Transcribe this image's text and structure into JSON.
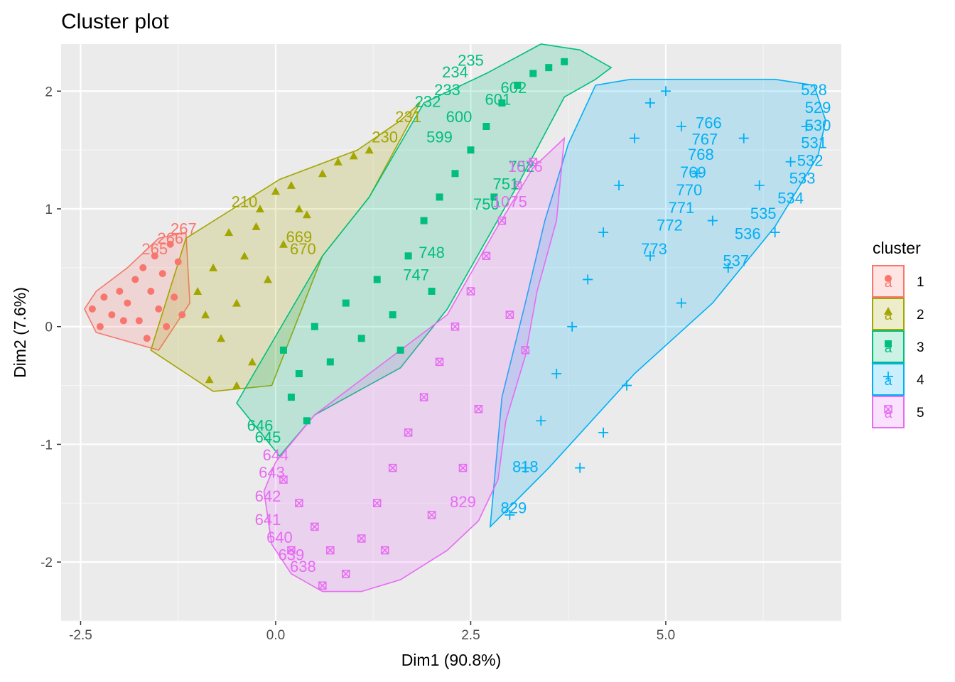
{
  "chart_data": {
    "type": "scatter",
    "title": "Cluster plot",
    "xlabel": "Dim1 (90.8%)",
    "ylabel": "Dim2 (7.6%)",
    "xlim": [
      -2.75,
      7.25
    ],
    "ylim": [
      -2.5,
      2.4
    ],
    "x_ticks": [
      -2.5,
      0.0,
      2.5,
      5.0
    ],
    "x_tick_labels": [
      "-2.5",
      "0.0",
      "2.5",
      "5.0"
    ],
    "y_ticks": [
      -2,
      -1,
      0,
      1,
      2
    ],
    "y_tick_labels": [
      "-2",
      "-1",
      "0",
      "1",
      "2"
    ],
    "grid": true,
    "legend": {
      "title": "cluster",
      "placement": "right"
    },
    "series": [
      {
        "name": "1",
        "color": "#F8766D",
        "marker": "circle",
        "hull": [
          [
            -2.45,
            0.15
          ],
          [
            -2.3,
            0.3
          ],
          [
            -1.9,
            0.5
          ],
          [
            -1.5,
            0.75
          ],
          [
            -1.15,
            0.8
          ],
          [
            -1.1,
            0.2
          ],
          [
            -1.5,
            -0.2
          ],
          [
            -2.3,
            -0.05
          ]
        ],
        "points": [
          [
            -2.35,
            0.15
          ],
          [
            -2.2,
            0.25
          ],
          [
            -2.1,
            0.1
          ],
          [
            -2.0,
            0.3
          ],
          [
            -1.9,
            0.2
          ],
          [
            -1.8,
            0.4
          ],
          [
            -1.75,
            0.05
          ],
          [
            -1.7,
            0.5
          ],
          [
            -1.6,
            0.3
          ],
          [
            -1.55,
            0.6
          ],
          [
            -1.5,
            0.15
          ],
          [
            -1.45,
            0.45
          ],
          [
            -1.35,
            0.7
          ],
          [
            -1.3,
            0.25
          ],
          [
            -1.25,
            0.55
          ],
          [
            -1.2,
            0.1
          ],
          [
            -2.25,
            0.0
          ],
          [
            -1.95,
            0.05
          ],
          [
            -1.65,
            -0.1
          ],
          [
            -1.4,
            0.0
          ]
        ],
        "labels": [
          {
            "x": -1.18,
            "y": 0.82,
            "text": "267"
          },
          {
            "x": -1.35,
            "y": 0.74,
            "text": "266"
          },
          {
            "x": -1.55,
            "y": 0.65,
            "text": "265"
          }
        ]
      },
      {
        "name": "2",
        "color": "#A3A500",
        "marker": "triangle",
        "hull": [
          [
            -1.6,
            -0.2
          ],
          [
            -1.15,
            0.75
          ],
          [
            -0.55,
            1.0
          ],
          [
            0.05,
            1.25
          ],
          [
            1.05,
            1.5
          ],
          [
            1.6,
            1.75
          ],
          [
            1.85,
            1.9
          ],
          [
            1.2,
            1.1
          ],
          [
            0.6,
            0.6
          ],
          [
            -0.05,
            -0.5
          ],
          [
            -0.8,
            -0.55
          ]
        ],
        "points": [
          [
            -1.0,
            0.3
          ],
          [
            -0.9,
            0.1
          ],
          [
            -0.8,
            0.5
          ],
          [
            -0.7,
            -0.1
          ],
          [
            -0.6,
            0.8
          ],
          [
            -0.5,
            0.2
          ],
          [
            -0.4,
            0.6
          ],
          [
            -0.3,
            -0.3
          ],
          [
            -0.2,
            1.0
          ],
          [
            -0.1,
            0.4
          ],
          [
            0.0,
            1.15
          ],
          [
            0.1,
            0.7
          ],
          [
            0.2,
            1.2
          ],
          [
            0.4,
            0.95
          ],
          [
            0.6,
            1.3
          ],
          [
            0.8,
            1.4
          ],
          [
            1.0,
            1.45
          ],
          [
            1.2,
            1.5
          ],
          [
            -0.85,
            -0.45
          ],
          [
            -0.5,
            -0.5
          ],
          [
            -0.25,
            0.85
          ],
          [
            0.3,
            1.0
          ]
        ],
        "labels": [
          {
            "x": 1.7,
            "y": 1.77,
            "text": "231"
          },
          {
            "x": 1.4,
            "y": 1.6,
            "text": "230"
          },
          {
            "x": -0.4,
            "y": 1.05,
            "text": "210"
          },
          {
            "x": 0.3,
            "y": 0.75,
            "text": "669"
          },
          {
            "x": 0.35,
            "y": 0.65,
            "text": "670"
          }
        ]
      },
      {
        "name": "3",
        "color": "#00BF7D",
        "marker": "square",
        "hull": [
          [
            -0.5,
            -0.65
          ],
          [
            0.05,
            -1.1
          ],
          [
            0.5,
            -0.75
          ],
          [
            1.6,
            -0.35
          ],
          [
            2.2,
            0.15
          ],
          [
            3.1,
            1.2
          ],
          [
            3.7,
            1.95
          ],
          [
            4.1,
            2.1
          ],
          [
            4.3,
            2.2
          ],
          [
            3.9,
            2.35
          ],
          [
            3.4,
            2.4
          ],
          [
            2.7,
            2.15
          ],
          [
            1.9,
            1.9
          ],
          [
            1.2,
            1.1
          ],
          [
            0.6,
            0.6
          ]
        ],
        "points": [
          [
            0.1,
            -0.2
          ],
          [
            0.3,
            -0.4
          ],
          [
            0.5,
            0.0
          ],
          [
            0.7,
            -0.3
          ],
          [
            0.9,
            0.2
          ],
          [
            1.1,
            -0.1
          ],
          [
            1.3,
            0.4
          ],
          [
            1.5,
            0.1
          ],
          [
            1.7,
            0.6
          ],
          [
            1.9,
            0.9
          ],
          [
            2.1,
            1.1
          ],
          [
            2.3,
            1.3
          ],
          [
            2.5,
            1.5
          ],
          [
            2.7,
            1.7
          ],
          [
            2.9,
            1.9
          ],
          [
            3.1,
            2.05
          ],
          [
            3.3,
            2.15
          ],
          [
            3.5,
            2.2
          ],
          [
            3.7,
            2.25
          ],
          [
            0.4,
            -0.8
          ],
          [
            0.2,
            -0.6
          ],
          [
            1.6,
            -0.2
          ],
          [
            2.0,
            0.3
          ],
          [
            2.8,
            1.1
          ]
        ],
        "labels": [
          {
            "x": 1.95,
            "y": 1.9,
            "text": "232"
          },
          {
            "x": 2.2,
            "y": 2.0,
            "text": "233"
          },
          {
            "x": 2.3,
            "y": 2.15,
            "text": "234"
          },
          {
            "x": 2.5,
            "y": 2.25,
            "text": "235"
          },
          {
            "x": 2.85,
            "y": 1.92,
            "text": "601"
          },
          {
            "x": 3.05,
            "y": 2.02,
            "text": "602"
          },
          {
            "x": 2.35,
            "y": 1.77,
            "text": "600"
          },
          {
            "x": 2.1,
            "y": 1.6,
            "text": "599"
          },
          {
            "x": 3.15,
            "y": 1.35,
            "text": "752"
          },
          {
            "x": 2.95,
            "y": 1.2,
            "text": "751"
          },
          {
            "x": 2.7,
            "y": 1.03,
            "text": "750"
          },
          {
            "x": 2.0,
            "y": 0.62,
            "text": "748"
          },
          {
            "x": 1.8,
            "y": 0.43,
            "text": "747"
          },
          {
            "x": -0.2,
            "y": -0.85,
            "text": "646"
          },
          {
            "x": -0.1,
            "y": -0.95,
            "text": "645"
          }
        ]
      },
      {
        "name": "4",
        "color": "#00B0F6",
        "marker": "plus",
        "hull": [
          [
            2.75,
            -1.7
          ],
          [
            3.5,
            -1.2
          ],
          [
            4.6,
            -0.4
          ],
          [
            5.6,
            0.2
          ],
          [
            6.4,
            0.85
          ],
          [
            6.95,
            1.45
          ],
          [
            7.05,
            1.75
          ],
          [
            6.9,
            2.05
          ],
          [
            6.4,
            2.1
          ],
          [
            5.4,
            2.1
          ],
          [
            4.55,
            2.1
          ],
          [
            4.1,
            2.05
          ],
          [
            3.75,
            1.55
          ],
          [
            3.45,
            0.9
          ],
          [
            3.2,
            0.2
          ],
          [
            2.9,
            -0.6
          ]
        ],
        "points": [
          [
            3.0,
            -1.6
          ],
          [
            3.2,
            -1.2
          ],
          [
            3.4,
            -0.8
          ],
          [
            3.6,
            -0.4
          ],
          [
            3.8,
            0.0
          ],
          [
            4.0,
            0.4
          ],
          [
            4.2,
            0.8
          ],
          [
            4.4,
            1.2
          ],
          [
            4.6,
            1.6
          ],
          [
            4.8,
            1.9
          ],
          [
            5.0,
            2.0
          ],
          [
            5.2,
            1.7
          ],
          [
            5.4,
            1.3
          ],
          [
            5.6,
            0.9
          ],
          [
            5.8,
            0.5
          ],
          [
            6.0,
            1.6
          ],
          [
            6.2,
            1.2
          ],
          [
            6.4,
            0.8
          ],
          [
            6.6,
            1.4
          ],
          [
            6.8,
            1.7
          ],
          [
            4.5,
            -0.5
          ],
          [
            4.2,
            -0.9
          ],
          [
            3.9,
            -1.2
          ],
          [
            5.2,
            0.2
          ],
          [
            4.8,
            0.6
          ]
        ],
        "labels": [
          {
            "x": 6.9,
            "y": 2.0,
            "text": "528"
          },
          {
            "x": 6.95,
            "y": 1.85,
            "text": "529"
          },
          {
            "x": 6.95,
            "y": 1.7,
            "text": "530"
          },
          {
            "x": 6.9,
            "y": 1.55,
            "text": "531"
          },
          {
            "x": 6.85,
            "y": 1.4,
            "text": "532"
          },
          {
            "x": 6.75,
            "y": 1.25,
            "text": "533"
          },
          {
            "x": 6.6,
            "y": 1.08,
            "text": "534"
          },
          {
            "x": 6.25,
            "y": 0.95,
            "text": "535"
          },
          {
            "x": 6.05,
            "y": 0.78,
            "text": "536"
          },
          {
            "x": 5.9,
            "y": 0.55,
            "text": "537"
          },
          {
            "x": 5.55,
            "y": 1.72,
            "text": "766"
          },
          {
            "x": 5.5,
            "y": 1.58,
            "text": "767"
          },
          {
            "x": 5.45,
            "y": 1.45,
            "text": "768"
          },
          {
            "x": 5.35,
            "y": 1.3,
            "text": "769"
          },
          {
            "x": 5.3,
            "y": 1.15,
            "text": "770"
          },
          {
            "x": 5.2,
            "y": 1.0,
            "text": "771"
          },
          {
            "x": 5.05,
            "y": 0.85,
            "text": "772"
          },
          {
            "x": 4.85,
            "y": 0.65,
            "text": "773"
          },
          {
            "x": 3.2,
            "y": -1.2,
            "text": "818"
          },
          {
            "x": 3.05,
            "y": -1.55,
            "text": "829"
          }
        ]
      },
      {
        "name": "5",
        "color": "#E76BF3",
        "marker": "boxx",
        "hull": [
          [
            0.0,
            -1.15
          ],
          [
            0.5,
            -0.75
          ],
          [
            1.4,
            -0.3
          ],
          [
            2.2,
            0.1
          ],
          [
            2.8,
            0.8
          ],
          [
            3.3,
            1.35
          ],
          [
            3.7,
            1.6
          ],
          [
            3.6,
            0.9
          ],
          [
            3.35,
            0.3
          ],
          [
            3.2,
            -0.25
          ],
          [
            2.95,
            -0.8
          ],
          [
            2.85,
            -1.3
          ],
          [
            2.6,
            -1.65
          ],
          [
            2.2,
            -1.9
          ],
          [
            1.6,
            -2.15
          ],
          [
            1.1,
            -2.25
          ],
          [
            0.6,
            -2.25
          ],
          [
            0.2,
            -2.1
          ],
          [
            -0.05,
            -1.85
          ],
          [
            -0.15,
            -1.4
          ]
        ],
        "points": [
          [
            0.1,
            -1.3
          ],
          [
            0.3,
            -1.5
          ],
          [
            0.5,
            -1.7
          ],
          [
            0.7,
            -1.9
          ],
          [
            0.9,
            -2.1
          ],
          [
            1.1,
            -1.8
          ],
          [
            1.3,
            -1.5
          ],
          [
            1.5,
            -1.2
          ],
          [
            1.7,
            -0.9
          ],
          [
            1.9,
            -0.6
          ],
          [
            2.1,
            -0.3
          ],
          [
            2.3,
            0.0
          ],
          [
            2.5,
            0.3
          ],
          [
            2.7,
            0.6
          ],
          [
            2.9,
            0.9
          ],
          [
            3.1,
            1.2
          ],
          [
            3.3,
            1.4
          ],
          [
            0.2,
            -1.9
          ],
          [
            0.6,
            -2.2
          ],
          [
            1.4,
            -1.9
          ],
          [
            2.0,
            -1.6
          ],
          [
            2.4,
            -1.2
          ],
          [
            2.6,
            -0.7
          ],
          [
            3.0,
            0.1
          ],
          [
            3.2,
            -0.2
          ]
        ],
        "labels": [
          {
            "x": 0.0,
            "y": -1.1,
            "text": "644"
          },
          {
            "x": -0.05,
            "y": -1.25,
            "text": "643"
          },
          {
            "x": -0.1,
            "y": -1.45,
            "text": "642"
          },
          {
            "x": -0.1,
            "y": -1.65,
            "text": "641"
          },
          {
            "x": 0.05,
            "y": -1.8,
            "text": "640"
          },
          {
            "x": 0.2,
            "y": -1.95,
            "text": "639"
          },
          {
            "x": 0.35,
            "y": -2.05,
            "text": "638"
          },
          {
            "x": 3.2,
            "y": 1.35,
            "text": "1076"
          },
          {
            "x": 3.0,
            "y": 1.05,
            "text": "1075"
          },
          {
            "x": 2.4,
            "y": -1.5,
            "text": "829"
          }
        ]
      }
    ]
  }
}
